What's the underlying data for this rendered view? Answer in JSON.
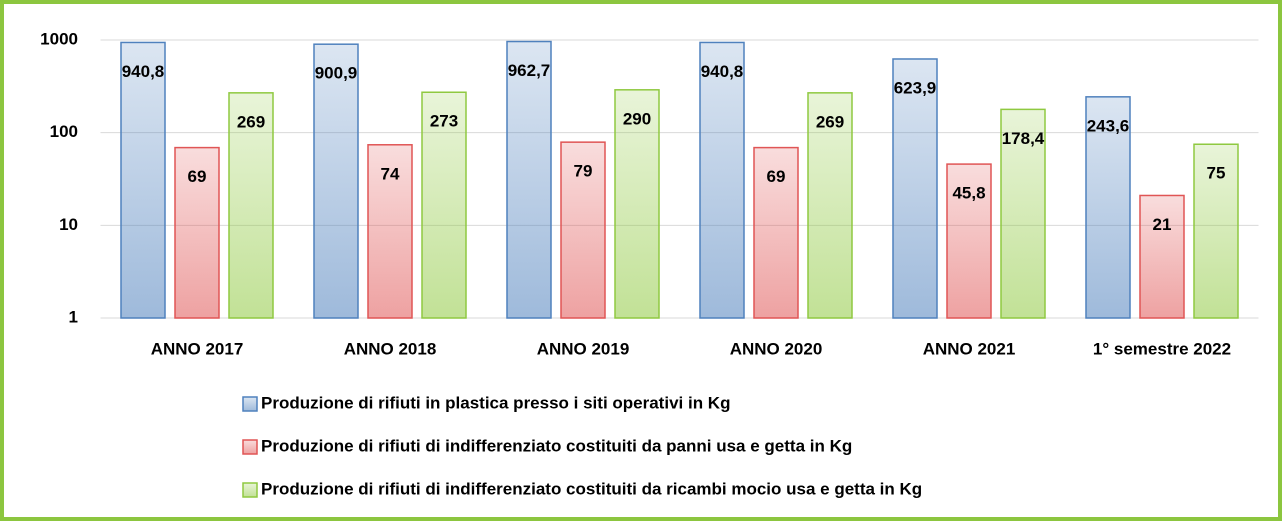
{
  "chart_data": {
    "type": "bar",
    "log_scale": true,
    "grid": true,
    "categories": [
      "ANNO 2017",
      "ANNO 2018",
      "ANNO 2019",
      "ANNO 2020",
      "ANNO 2021",
      "1° semestre 2022"
    ],
    "series": [
      {
        "name": "Produzione di rifiuti in plastica presso i siti operativi in Kg",
        "color": "#4f81bd",
        "values": [
          940.8,
          900.9,
          962.7,
          940.8,
          623.9,
          243.6
        ],
        "value_labels": [
          "940,8",
          "900,9",
          "962,7",
          "940,8",
          "623,9",
          "243,6"
        ]
      },
      {
        "name": "Produzione di rifiuti di indifferenziato costituiti da panni usa e getta in Kg",
        "color": "#e05555",
        "values": [
          69,
          74,
          79,
          69,
          45.8,
          21
        ],
        "value_labels": [
          "69",
          "74",
          "79",
          "69",
          "45,8",
          "21"
        ]
      },
      {
        "name": "Produzione di rifiuti di indifferenziato costituiti da ricambi mocio usa e getta in Kg",
        "color": "#8fc940",
        "values": [
          269,
          273,
          290,
          269,
          178.4,
          75
        ],
        "value_labels": [
          "269",
          "273",
          "290",
          "269",
          "178,4",
          "75"
        ]
      }
    ],
    "ylim": [
      1,
      1000
    ],
    "yticks": [
      1,
      10,
      100,
      1000
    ],
    "legend": "bottom"
  }
}
